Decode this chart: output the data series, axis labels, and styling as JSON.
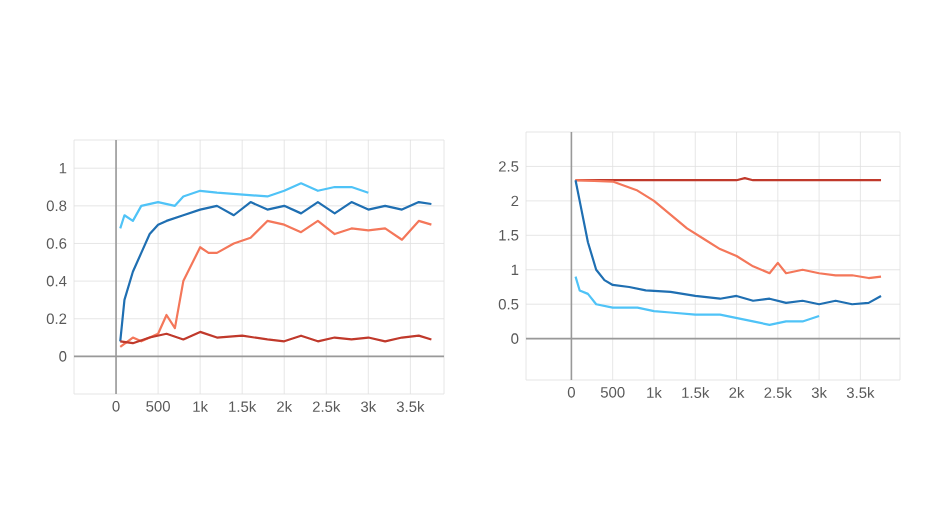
{
  "chart_data": [
    {
      "type": "line",
      "xlim": [
        -500,
        3900
      ],
      "ylim": [
        -0.2,
        1.15
      ],
      "xticks": [
        0,
        500,
        {
          "value": 1000,
          "label": "1k"
        },
        {
          "value": 1500,
          "label": "1.5k"
        },
        {
          "value": 2000,
          "label": "2k"
        },
        {
          "value": 2500,
          "label": "2.5k"
        },
        {
          "value": 3000,
          "label": "3k"
        },
        {
          "value": 3500,
          "label": "3.5k"
        }
      ],
      "yticks": [
        0,
        0.2,
        0.4,
        0.6,
        0.8,
        1
      ],
      "grid": true,
      "line_style": "solid",
      "series": [
        {
          "color": "#4fc3f7",
          "x": [
            50,
            100,
            200,
            300,
            500,
            700,
            800,
            1000,
            1200,
            1500,
            1800,
            2000,
            2200,
            2400,
            2600,
            2800,
            3000
          ],
          "values": [
            0.68,
            0.75,
            0.72,
            0.8,
            0.82,
            0.8,
            0.85,
            0.88,
            0.87,
            0.86,
            0.85,
            0.88,
            0.92,
            0.88,
            0.9,
            0.9,
            0.87
          ]
        },
        {
          "color": "#1f6fb2",
          "x": [
            50,
            100,
            200,
            300,
            400,
            500,
            600,
            800,
            1000,
            1200,
            1400,
            1600,
            1800,
            2000,
            2200,
            2400,
            2600,
            2800,
            3000,
            3200,
            3400,
            3600,
            3750
          ],
          "values": [
            0.08,
            0.3,
            0.45,
            0.55,
            0.65,
            0.7,
            0.72,
            0.75,
            0.78,
            0.8,
            0.75,
            0.82,
            0.78,
            0.8,
            0.76,
            0.82,
            0.76,
            0.82,
            0.78,
            0.8,
            0.78,
            0.82,
            0.81
          ]
        },
        {
          "color": "#f4775a",
          "x": [
            50,
            200,
            300,
            500,
            600,
            700,
            800,
            1000,
            1100,
            1200,
            1400,
            1600,
            1800,
            2000,
            2200,
            2400,
            2600,
            2800,
            3000,
            3200,
            3400,
            3600,
            3750
          ],
          "values": [
            0.05,
            0.1,
            0.08,
            0.12,
            0.22,
            0.15,
            0.4,
            0.58,
            0.55,
            0.55,
            0.6,
            0.63,
            0.72,
            0.7,
            0.66,
            0.72,
            0.65,
            0.68,
            0.67,
            0.68,
            0.62,
            0.72,
            0.7
          ]
        },
        {
          "color": "#c0392b",
          "x": [
            50,
            200,
            400,
            600,
            800,
            1000,
            1200,
            1500,
            1800,
            2000,
            2200,
            2400,
            2600,
            2800,
            3000,
            3200,
            3400,
            3600,
            3750
          ],
          "values": [
            0.08,
            0.07,
            0.1,
            0.12,
            0.09,
            0.13,
            0.1,
            0.11,
            0.09,
            0.08,
            0.11,
            0.08,
            0.1,
            0.09,
            0.1,
            0.08,
            0.1,
            0.11,
            0.09
          ]
        }
      ]
    },
    {
      "type": "line",
      "xlim": [
        -550,
        3980
      ],
      "ylim": [
        -0.6,
        3.0
      ],
      "xticks": [
        0,
        500,
        {
          "value": 1000,
          "label": "1k"
        },
        {
          "value": 1500,
          "label": "1.5k"
        },
        {
          "value": 2000,
          "label": "2k"
        },
        {
          "value": 2500,
          "label": "2.5k"
        },
        {
          "value": 3000,
          "label": "3k"
        },
        {
          "value": 3500,
          "label": "3.5k"
        }
      ],
      "yticks": [
        0,
        0.5,
        1,
        1.5,
        2,
        2.5
      ],
      "grid": true,
      "line_style": "solid",
      "series": [
        {
          "color": "#c0392b",
          "x": [
            50,
            500,
            1000,
            1500,
            2000,
            2100,
            2200,
            2600,
            3000,
            3400,
            3750
          ],
          "values": [
            2.3,
            2.3,
            2.3,
            2.3,
            2.3,
            2.33,
            2.3,
            2.3,
            2.3,
            2.3,
            2.3
          ]
        },
        {
          "color": "#f4775a",
          "x": [
            50,
            500,
            800,
            1000,
            1200,
            1400,
            1600,
            1800,
            2000,
            2200,
            2400,
            2500,
            2600,
            2800,
            3000,
            3200,
            3400,
            3600,
            3750
          ],
          "values": [
            2.3,
            2.28,
            2.15,
            2.0,
            1.8,
            1.6,
            1.45,
            1.3,
            1.2,
            1.05,
            0.95,
            1.1,
            0.95,
            1.0,
            0.95,
            0.92,
            0.92,
            0.88,
            0.9
          ]
        },
        {
          "color": "#1f6fb2",
          "x": [
            50,
            100,
            200,
            300,
            400,
            500,
            700,
            900,
            1200,
            1500,
            1800,
            2000,
            2200,
            2400,
            2600,
            2800,
            3000,
            3200,
            3400,
            3600,
            3750
          ],
          "values": [
            2.3,
            2.0,
            1.4,
            1.0,
            0.85,
            0.78,
            0.75,
            0.7,
            0.68,
            0.62,
            0.58,
            0.62,
            0.55,
            0.58,
            0.52,
            0.55,
            0.5,
            0.55,
            0.5,
            0.52,
            0.62
          ]
        },
        {
          "color": "#4fc3f7",
          "x": [
            50,
            100,
            200,
            300,
            500,
            800,
            1000,
            1200,
            1500,
            1800,
            2000,
            2200,
            2400,
            2600,
            2800,
            3000
          ],
          "values": [
            0.9,
            0.7,
            0.65,
            0.5,
            0.45,
            0.45,
            0.4,
            0.38,
            0.35,
            0.35,
            0.3,
            0.25,
            0.2,
            0.25,
            0.25,
            0.33
          ]
        }
      ]
    }
  ]
}
